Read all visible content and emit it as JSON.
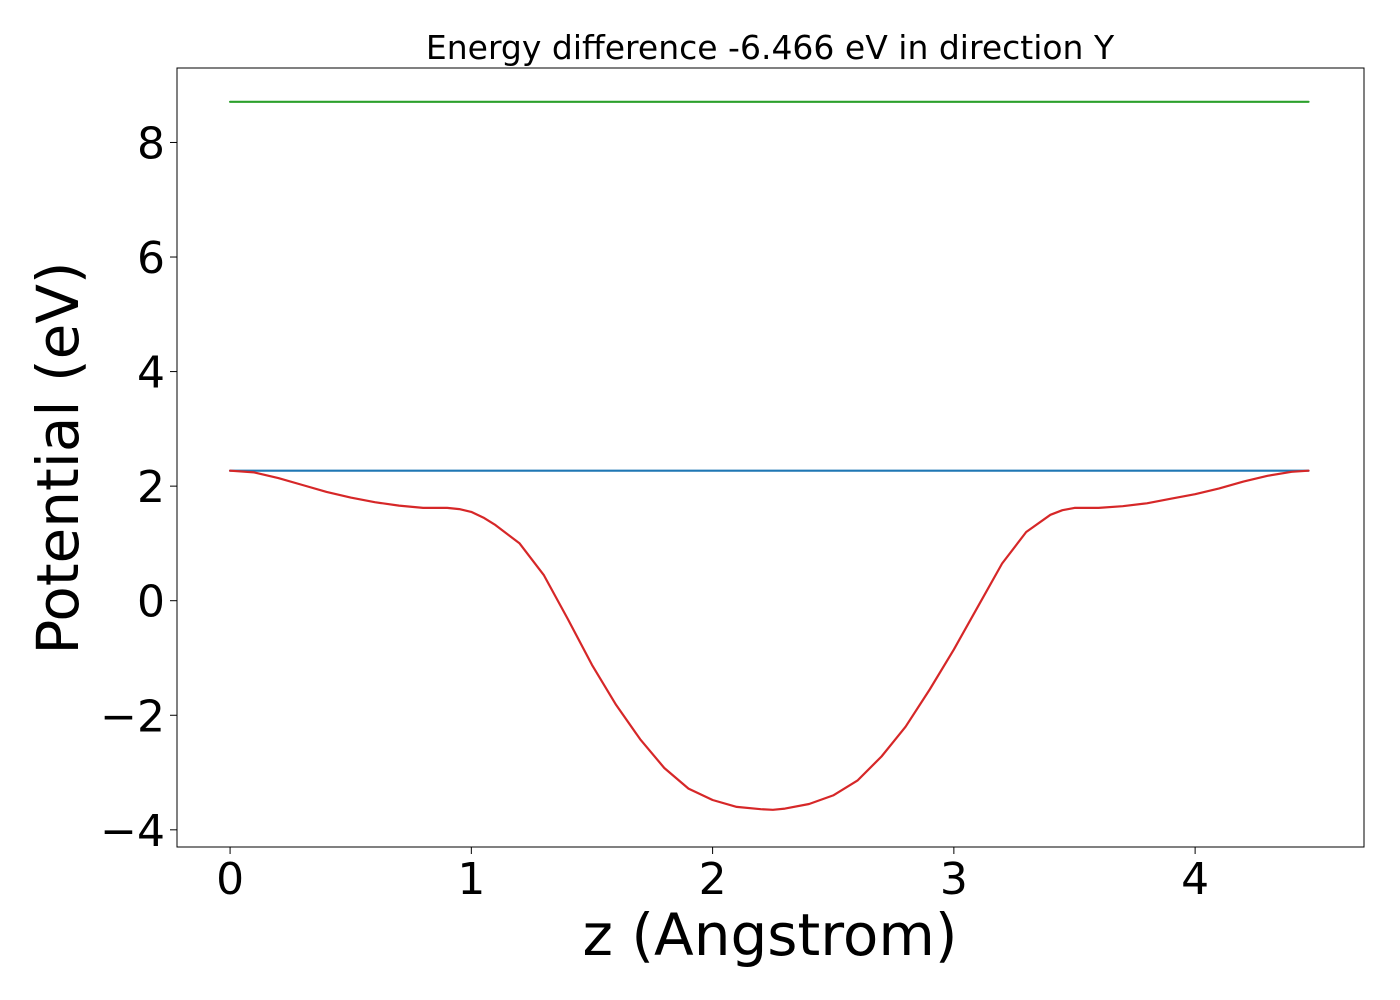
{
  "chart_data": {
    "type": "line",
    "title": "Energy difference -6.466 eV in direction Y",
    "xlabel": "z (Angstrom)",
    "ylabel": "Potential (eV)",
    "xlim": [
      -0.22,
      4.7
    ],
    "ylim": [
      -4.3,
      9.3
    ],
    "xticks": [
      0,
      1,
      2,
      3,
      4
    ],
    "xtick_labels": [
      "0",
      "1",
      "2",
      "3",
      "4"
    ],
    "yticks": [
      -4,
      -2,
      0,
      2,
      4,
      6,
      8
    ],
    "ytick_labels": [
      "−4",
      "−2",
      "0",
      "2",
      "4",
      "6",
      "8"
    ],
    "grid": false,
    "series": [
      {
        "color": "#2ca02c",
        "x": [
          0,
          4.47
        ],
        "y": [
          8.71,
          8.71
        ]
      },
      {
        "color": "#1f77b4",
        "x": [
          0,
          4.47
        ],
        "y": [
          2.27,
          2.27
        ]
      },
      {
        "color": "#d62728",
        "x": [
          0,
          0.1,
          0.2,
          0.3,
          0.4,
          0.5,
          0.6,
          0.7,
          0.8,
          0.9,
          0.95,
          1.0,
          1.05,
          1.1,
          1.2,
          1.3,
          1.4,
          1.5,
          1.6,
          1.7,
          1.8,
          1.9,
          2.0,
          2.1,
          2.2,
          2.25,
          2.3,
          2.4,
          2.5,
          2.6,
          2.7,
          2.8,
          2.9,
          3.0,
          3.1,
          3.2,
          3.3,
          3.4,
          3.45,
          3.5,
          3.6,
          3.7,
          3.8,
          3.9,
          4.0,
          4.1,
          4.2,
          4.3,
          4.4,
          4.47
        ],
        "y": [
          2.27,
          2.24,
          2.14,
          2.02,
          1.9,
          1.8,
          1.72,
          1.66,
          1.62,
          1.62,
          1.6,
          1.55,
          1.45,
          1.32,
          1.0,
          0.45,
          -0.32,
          -1.12,
          -1.82,
          -2.42,
          -2.92,
          -3.28,
          -3.48,
          -3.6,
          -3.64,
          -3.65,
          -3.63,
          -3.55,
          -3.4,
          -3.14,
          -2.72,
          -2.2,
          -1.55,
          -0.85,
          -0.1,
          0.65,
          1.2,
          1.5,
          1.58,
          1.62,
          1.62,
          1.65,
          1.7,
          1.78,
          1.86,
          1.96,
          2.08,
          2.18,
          2.25,
          2.27
        ]
      }
    ]
  }
}
